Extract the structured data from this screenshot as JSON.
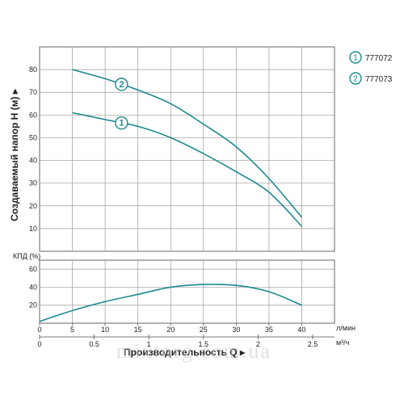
{
  "chart_data": [
    {
      "type": "line",
      "ylabel": "Создаваемый напор H (м) ▸",
      "ylim": [
        0,
        90
      ],
      "yticks": [
        10,
        20,
        30,
        40,
        50,
        60,
        70,
        80
      ],
      "xlim": [
        0,
        45
      ],
      "series": [
        {
          "name": "777072",
          "marker": "1",
          "x": [
            5,
            10,
            15,
            20,
            25,
            30,
            35,
            40
          ],
          "values": [
            61,
            58,
            55,
            50,
            43,
            35,
            26,
            11
          ]
        },
        {
          "name": "777073",
          "marker": "2",
          "x": [
            5,
            10,
            15,
            20,
            25,
            30,
            35,
            40
          ],
          "values": [
            80,
            76,
            71,
            65,
            56,
            46,
            32,
            15
          ]
        }
      ],
      "legend": "right-top"
    },
    {
      "type": "line",
      "ylabel": "КПД (%)",
      "ylim": [
        0,
        70
      ],
      "yticks": [
        20,
        40,
        60
      ],
      "xlim": [
        0,
        45
      ],
      "series": [
        {
          "x": [
            0,
            5,
            10,
            15,
            20,
            25,
            30,
            35,
            40
          ],
          "values": [
            2,
            14,
            24,
            32,
            40,
            43,
            42,
            35,
            20
          ]
        }
      ]
    }
  ],
  "x_axis_lpm": {
    "unit": "л/мин",
    "ticks": [
      "0",
      "5",
      "10",
      "15",
      "20",
      "25",
      "30",
      "35",
      "40"
    ]
  },
  "x_axis_m3h": {
    "unit": "м³/ч",
    "ticks": [
      "0",
      "0.5",
      "1",
      "1.5",
      "2",
      "2.5"
    ],
    "values": [
      0,
      0.5,
      1,
      1.5,
      2,
      2.5
    ]
  },
  "x_title": "Производительность Q ▸",
  "colors": {
    "curve": "#1b8a8f",
    "grid": "#9a9a9a",
    "frame": "#555555",
    "watermark": "#c8c8c8"
  },
  "watermark_text": "mixtorg.com.ua"
}
